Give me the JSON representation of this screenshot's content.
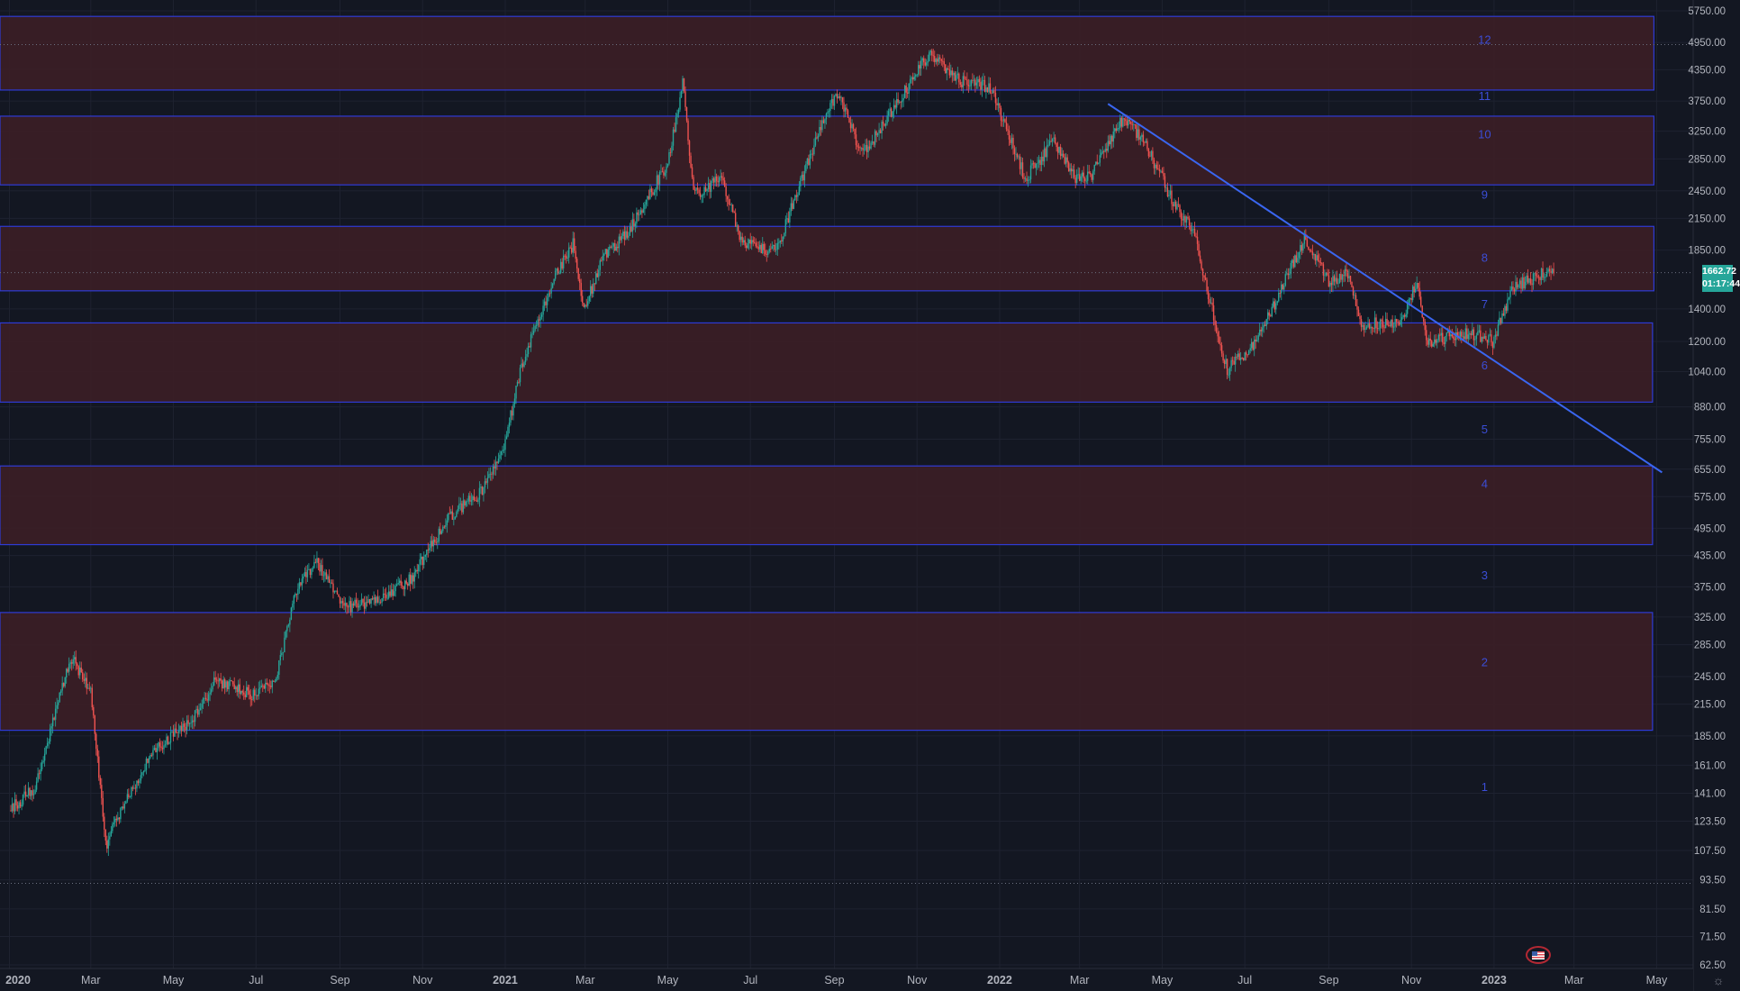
{
  "chart_data": {
    "type": "candlestick",
    "symbol_price": "1662.72",
    "countdown": "01:17:44",
    "y_scale": "log",
    "ylim": [
      62.5,
      5750
    ],
    "xlim": [
      "2019-12-25",
      "2023-05-28"
    ],
    "y_ticks": [
      "5750.00",
      "4950.00",
      "4350.00",
      "3750.00",
      "3250.00",
      "2850.00",
      "2450.00",
      "2150.00",
      "1850.00",
      "1400.00",
      "1200.00",
      "1040.00",
      "880.00",
      "755.00",
      "655.00",
      "575.00",
      "495.00",
      "435.00",
      "375.00",
      "325.00",
      "285.00",
      "245.00",
      "215.00",
      "185.00",
      "161.00",
      "141.00",
      "123.50",
      "107.50",
      "93.50",
      "81.50",
      "71.50",
      "62.50"
    ],
    "x_ticks": [
      {
        "label": "2020",
        "date": "2020-01-01"
      },
      {
        "label": "Mar",
        "date": "2020-03-01"
      },
      {
        "label": "May",
        "date": "2020-05-01"
      },
      {
        "label": "Jul",
        "date": "2020-07-01"
      },
      {
        "label": "Sep",
        "date": "2020-09-01"
      },
      {
        "label": "Nov",
        "date": "2020-11-01"
      },
      {
        "label": "2021",
        "date": "2021-01-01"
      },
      {
        "label": "Mar",
        "date": "2021-03-01"
      },
      {
        "label": "May",
        "date": "2021-05-01"
      },
      {
        "label": "Jul",
        "date": "2021-07-01"
      },
      {
        "label": "Sep",
        "date": "2021-09-01"
      },
      {
        "label": "Nov",
        "date": "2021-11-01"
      },
      {
        "label": "2022",
        "date": "2022-01-01"
      },
      {
        "label": "Mar",
        "date": "2022-03-01"
      },
      {
        "label": "May",
        "date": "2022-05-01"
      },
      {
        "label": "Jul",
        "date": "2022-07-01"
      },
      {
        "label": "Sep",
        "date": "2022-09-01"
      },
      {
        "label": "Nov",
        "date": "2022-11-01"
      },
      {
        "label": "2023",
        "date": "2023-01-01"
      },
      {
        "label": "Mar",
        "date": "2023-03-01"
      },
      {
        "label": "May",
        "date": "2023-05-01"
      }
    ],
    "price_path": [
      [
        "2020-01-01",
        130
      ],
      [
        "2020-01-20",
        145
      ],
      [
        "2020-02-15",
        270
      ],
      [
        "2020-03-01",
        230
      ],
      [
        "2020-03-12",
        110
      ],
      [
        "2020-03-20",
        125
      ],
      [
        "2020-04-15",
        170
      ],
      [
        "2020-05-15",
        200
      ],
      [
        "2020-06-01",
        240
      ],
      [
        "2020-06-30",
        225
      ],
      [
        "2020-07-15",
        240
      ],
      [
        "2020-08-01",
        380
      ],
      [
        "2020-08-15",
        420
      ],
      [
        "2020-09-05",
        340
      ],
      [
        "2020-10-01",
        350
      ],
      [
        "2020-10-25",
        395
      ],
      [
        "2020-11-20",
        520
      ],
      [
        "2020-12-15",
        590
      ],
      [
        "2021-01-01",
        740
      ],
      [
        "2021-01-12",
        1050
      ],
      [
        "2021-02-05",
        1600
      ],
      [
        "2021-02-20",
        1900
      ],
      [
        "2021-02-28",
        1400
      ],
      [
        "2021-03-15",
        1800
      ],
      [
        "2021-04-01",
        2000
      ],
      [
        "2021-05-01",
        2800
      ],
      [
        "2021-05-12",
        4100
      ],
      [
        "2021-05-20",
        2400
      ],
      [
        "2021-06-10",
        2600
      ],
      [
        "2021-06-25",
        1900
      ],
      [
        "2021-07-20",
        1850
      ],
      [
        "2021-08-20",
        3200
      ],
      [
        "2021-09-03",
        3900
      ],
      [
        "2021-09-22",
        2900
      ],
      [
        "2021-10-20",
        3800
      ],
      [
        "2021-11-10",
        4700
      ],
      [
        "2021-12-05",
        4100
      ],
      [
        "2021-12-25",
        4000
      ],
      [
        "2022-01-20",
        2600
      ],
      [
        "2022-02-10",
        3100
      ],
      [
        "2022-02-25",
        2600
      ],
      [
        "2022-03-10",
        2650
      ],
      [
        "2022-04-03",
        3500
      ],
      [
        "2022-04-20",
        3000
      ],
      [
        "2022-05-10",
        2300
      ],
      [
        "2022-05-25",
        2000
      ],
      [
        "2022-06-12",
        1200
      ],
      [
        "2022-06-18",
        1050
      ],
      [
        "2022-07-10",
        1200
      ],
      [
        "2022-08-14",
        1950
      ],
      [
        "2022-09-01",
        1600
      ],
      [
        "2022-09-15",
        1650
      ],
      [
        "2022-09-25",
        1300
      ],
      [
        "2022-10-25",
        1320
      ],
      [
        "2022-11-05",
        1600
      ],
      [
        "2022-11-12",
        1200
      ],
      [
        "2022-12-15",
        1250
      ],
      [
        "2022-12-31",
        1200
      ],
      [
        "2023-01-15",
        1550
      ],
      [
        "2023-02-05",
        1650
      ],
      [
        "2023-02-14",
        1662.72
      ]
    ],
    "zones": [
      {
        "low": 3950,
        "high": 5600,
        "end": "2023-04-29"
      },
      {
        "low": 2520,
        "high": 3490,
        "end": "2023-04-29"
      },
      {
        "low": 1525,
        "high": 2070,
        "end": "2023-04-29"
      },
      {
        "low": 900,
        "high": 1310,
        "end": "2023-04-28"
      },
      {
        "low": 458,
        "high": 665,
        "end": "2023-04-28"
      },
      {
        "low": 190,
        "high": 332,
        "end": "2023-04-28"
      }
    ],
    "zone_labels": [
      {
        "text": "12",
        "y": 5000
      },
      {
        "text": "11",
        "y": 3830
      },
      {
        "text": "10",
        "y": 3200
      },
      {
        "text": "9",
        "y": 2400
      },
      {
        "text": "8",
        "y": 1780
      },
      {
        "text": "7",
        "y": 1430
      },
      {
        "text": "6",
        "y": 1070
      },
      {
        "text": "5",
        "y": 790
      },
      {
        "text": "4",
        "y": 610
      },
      {
        "text": "3",
        "y": 395
      },
      {
        "text": "2",
        "y": 262
      },
      {
        "text": "1",
        "y": 145
      }
    ],
    "label_date": "2022-12-25",
    "trendline": {
      "from": [
        "2022-03-22",
        3700
      ],
      "to": [
        "2023-05-05",
        645
      ]
    },
    "reference_lines": [
      4900,
      1662.72,
      92
    ],
    "colors": {
      "background": "#131722",
      "grid": "#1e2230",
      "up": "#26a69a",
      "down": "#ef5350",
      "zone_fill": "#3b1e26",
      "zone_border": "#2e3bd6",
      "label": "#3b4dd6",
      "trend": "#3a66f0",
      "axis_text": "#b2b5be"
    }
  }
}
